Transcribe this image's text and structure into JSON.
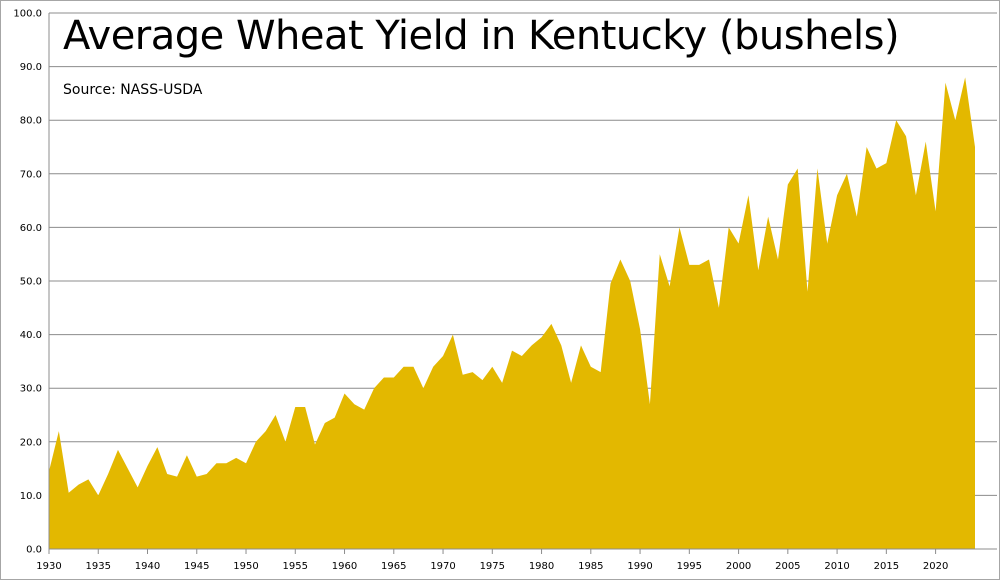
{
  "chart_data": {
    "type": "area",
    "title": "Average Wheat Yield in Kentucky (bushels)",
    "source": "Source: NASS-USDA",
    "xlabel": "",
    "ylabel": "",
    "xlim": [
      1930,
      2024
    ],
    "ylim": [
      0,
      100
    ],
    "y_ticks": [
      "0.0",
      "10.0",
      "20.0",
      "30.0",
      "40.0",
      "50.0",
      "60.0",
      "70.0",
      "80.0",
      "90.0",
      "100.0"
    ],
    "x_ticks": [
      "1930",
      "1935",
      "1940",
      "1945",
      "1950",
      "1955",
      "1960",
      "1965",
      "1970",
      "1975",
      "1980",
      "1985",
      "1990",
      "1995",
      "2000",
      "2005",
      "2010",
      "2015",
      "2020"
    ],
    "grid": true,
    "fill_color": "#e3b800",
    "x": [
      1930,
      1931,
      1932,
      1933,
      1934,
      1935,
      1936,
      1937,
      1938,
      1939,
      1940,
      1941,
      1942,
      1943,
      1944,
      1945,
      1946,
      1947,
      1948,
      1949,
      1950,
      1951,
      1952,
      1953,
      1954,
      1955,
      1956,
      1957,
      1958,
      1959,
      1960,
      1961,
      1962,
      1963,
      1964,
      1965,
      1966,
      1967,
      1968,
      1969,
      1970,
      1971,
      1972,
      1973,
      1974,
      1975,
      1976,
      1977,
      1978,
      1979,
      1980,
      1981,
      1982,
      1983,
      1984,
      1985,
      1986,
      1987,
      1988,
      1989,
      1990,
      1991,
      1992,
      1993,
      1994,
      1995,
      1996,
      1997,
      1998,
      1999,
      2000,
      2001,
      2002,
      2003,
      2004,
      2005,
      2006,
      2007,
      2008,
      2009,
      2010,
      2011,
      2012,
      2013,
      2014,
      2015,
      2016,
      2017,
      2018,
      2019,
      2020,
      2021,
      2022,
      2023,
      2024
    ],
    "values": [
      14.5,
      22,
      10.5,
      12,
      13,
      10,
      14,
      18.5,
      15,
      11.5,
      15.5,
      19,
      14,
      13.5,
      17.5,
      13.5,
      14,
      16,
      16,
      17,
      16,
      20,
      22,
      25,
      20,
      26.5,
      26.5,
      19.5,
      23.5,
      24.5,
      29,
      27,
      26,
      30,
      32,
      32,
      34,
      34,
      30,
      34,
      36,
      40,
      32.5,
      33,
      31.5,
      34,
      31,
      37,
      36,
      38,
      39.5,
      42,
      38,
      31,
      38,
      34,
      33,
      49.5,
      54,
      50,
      41,
      27,
      55,
      49,
      60,
      53,
      53,
      54,
      45,
      60,
      57,
      66,
      52,
      62,
      54,
      68,
      71,
      48,
      71,
      57,
      66,
      70,
      62,
      75,
      71,
      72,
      80,
      77,
      66,
      76,
      63,
      87,
      80,
      88,
      75
    ]
  }
}
